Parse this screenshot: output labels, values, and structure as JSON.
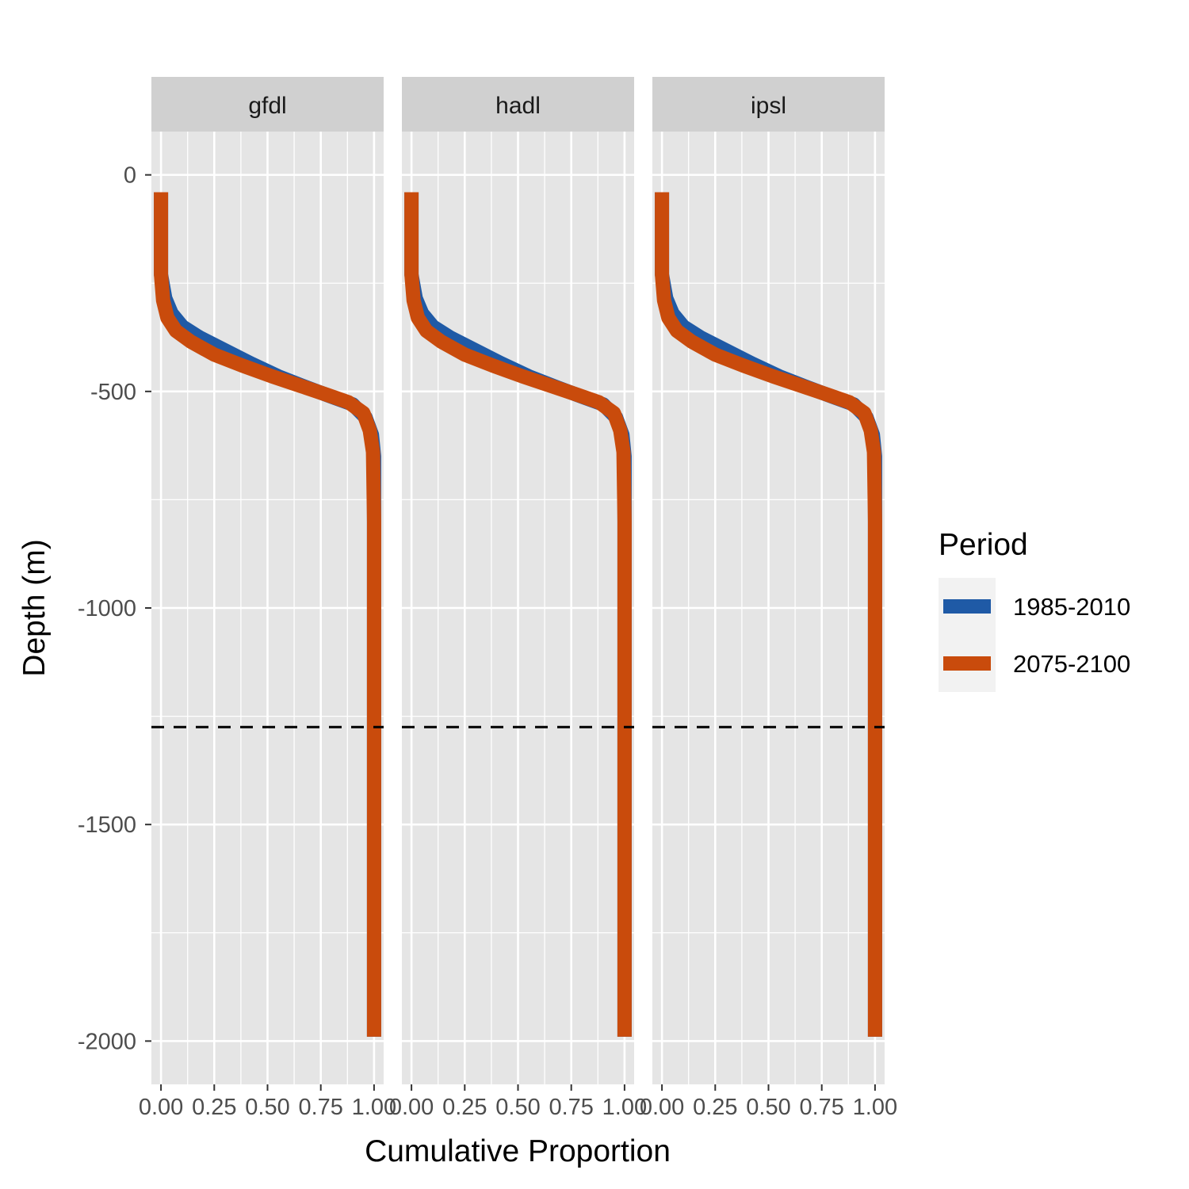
{
  "chart_data": {
    "type": "line",
    "facets": [
      {
        "label": "gfdl",
        "series": [
          {
            "name": "1985-2010",
            "x": [
              0.0,
              0.0,
              0.0,
              0.02,
              0.05,
              0.1,
              0.18,
              0.3,
              0.42,
              0.55,
              0.68,
              0.8,
              0.9,
              0.96,
              0.99,
              1.0,
              1.0,
              1.0,
              1.0
            ],
            "y": [
              -40,
              -150,
              -230,
              -285,
              -320,
              -350,
              -375,
              -405,
              -435,
              -465,
              -490,
              -512,
              -530,
              -560,
              -600,
              -650,
              -800,
              -1280,
              -1990
            ]
          },
          {
            "name": "2075-2100",
            "x": [
              0.0,
              0.0,
              0.0,
              0.01,
              0.03,
              0.07,
              0.14,
              0.25,
              0.38,
              0.52,
              0.66,
              0.78,
              0.88,
              0.95,
              0.98,
              0.995,
              1.0,
              1.0,
              1.0
            ],
            "y": [
              -40,
              -150,
              -230,
              -290,
              -330,
              -360,
              -385,
              -415,
              -440,
              -465,
              -488,
              -508,
              -525,
              -550,
              -590,
              -640,
              -800,
              -1280,
              -1990
            ]
          }
        ]
      },
      {
        "label": "hadl",
        "series": [
          {
            "name": "1985-2010",
            "x": [
              0.0,
              0.0,
              0.0,
              0.02,
              0.05,
              0.1,
              0.18,
              0.3,
              0.42,
              0.55,
              0.68,
              0.8,
              0.9,
              0.96,
              0.99,
              1.0,
              1.0,
              1.0,
              1.0
            ],
            "y": [
              -40,
              -150,
              -230,
              -285,
              -320,
              -350,
              -375,
              -405,
              -435,
              -465,
              -490,
              -512,
              -530,
              -560,
              -600,
              -650,
              -800,
              -1280,
              -1990
            ]
          },
          {
            "name": "2075-2100",
            "x": [
              0.0,
              0.0,
              0.0,
              0.01,
              0.03,
              0.07,
              0.14,
              0.25,
              0.38,
              0.52,
              0.66,
              0.78,
              0.88,
              0.95,
              0.98,
              0.995,
              1.0,
              1.0,
              1.0
            ],
            "y": [
              -40,
              -150,
              -230,
              -290,
              -330,
              -360,
              -385,
              -415,
              -440,
              -465,
              -488,
              -508,
              -525,
              -550,
              -590,
              -640,
              -800,
              -1280,
              -1990
            ]
          }
        ]
      },
      {
        "label": "ipsl",
        "series": [
          {
            "name": "1985-2010",
            "x": [
              0.0,
              0.0,
              0.0,
              0.02,
              0.05,
              0.1,
              0.18,
              0.3,
              0.42,
              0.55,
              0.68,
              0.8,
              0.9,
              0.96,
              0.99,
              1.0,
              1.0,
              1.0,
              1.0
            ],
            "y": [
              -40,
              -150,
              -230,
              -285,
              -320,
              -350,
              -375,
              -405,
              -435,
              -465,
              -490,
              -512,
              -530,
              -560,
              -600,
              -650,
              -800,
              -1280,
              -1990
            ]
          },
          {
            "name": "2075-2100",
            "x": [
              0.0,
              0.0,
              0.0,
              0.01,
              0.03,
              0.07,
              0.14,
              0.25,
              0.38,
              0.52,
              0.66,
              0.78,
              0.88,
              0.95,
              0.98,
              0.995,
              1.0,
              1.0,
              1.0
            ],
            "y": [
              -40,
              -150,
              -230,
              -290,
              -330,
              -360,
              -385,
              -415,
              -440,
              -465,
              -488,
              -508,
              -525,
              -550,
              -590,
              -640,
              -800,
              -1280,
              -1990
            ]
          }
        ]
      }
    ],
    "xlabel": "Cumulative Proportion",
    "ylabel": "Depth (m)",
    "xlim": [
      -0.045,
      1.045
    ],
    "ylim": [
      -2100,
      100
    ],
    "x_ticks": [
      0.0,
      0.25,
      0.5,
      0.75,
      1.0
    ],
    "x_tick_labels": [
      "0.00",
      "0.25",
      "0.50",
      "0.75",
      "1.00"
    ],
    "y_ticks": [
      0,
      -500,
      -1000,
      -1500,
      -2000
    ],
    "y_tick_labels": [
      "0",
      "-500",
      "-1000",
      "-1500",
      "-2000"
    ],
    "reference_line": {
      "y": -1275,
      "style": "dashed",
      "color": "#000000"
    },
    "grid": true,
    "legend": {
      "title": "Period",
      "position": "right",
      "items": [
        {
          "label": "1985-2010",
          "color": "#1f5aa6"
        },
        {
          "label": "2075-2100",
          "color": "#c94b0c"
        }
      ]
    },
    "colors": {
      "panel_bg": "#e5e5e5",
      "strip_bg": "#d0d0d0",
      "grid": "#ffffff"
    }
  }
}
